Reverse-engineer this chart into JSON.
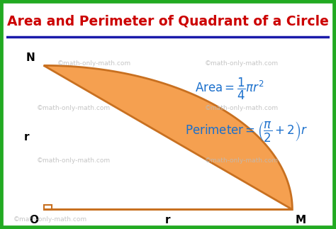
{
  "title": "Area and Perimeter of Quadrant of a Circle",
  "title_color": "#cc0000",
  "title_underline_color": "#1a1aaa",
  "bg_color": "#ffffff",
  "outer_border_color": "#22aa22",
  "outer_border_lw": 7,
  "quadrant_fill": "#f5a050",
  "quadrant_edge": "#c87020",
  "quadrant_edge_lw": 2.0,
  "formula_color": "#1a6fcc",
  "watermark_color": "#bbbbbb",
  "watermark_text": "©math-only-math.com",
  "label_O": "O",
  "label_N": "N",
  "label_M": "M",
  "label_r_x": "r",
  "label_r_y": "r",
  "ox": 0.13,
  "oy": 0.1,
  "r": 0.74,
  "sq_size": 0.025
}
